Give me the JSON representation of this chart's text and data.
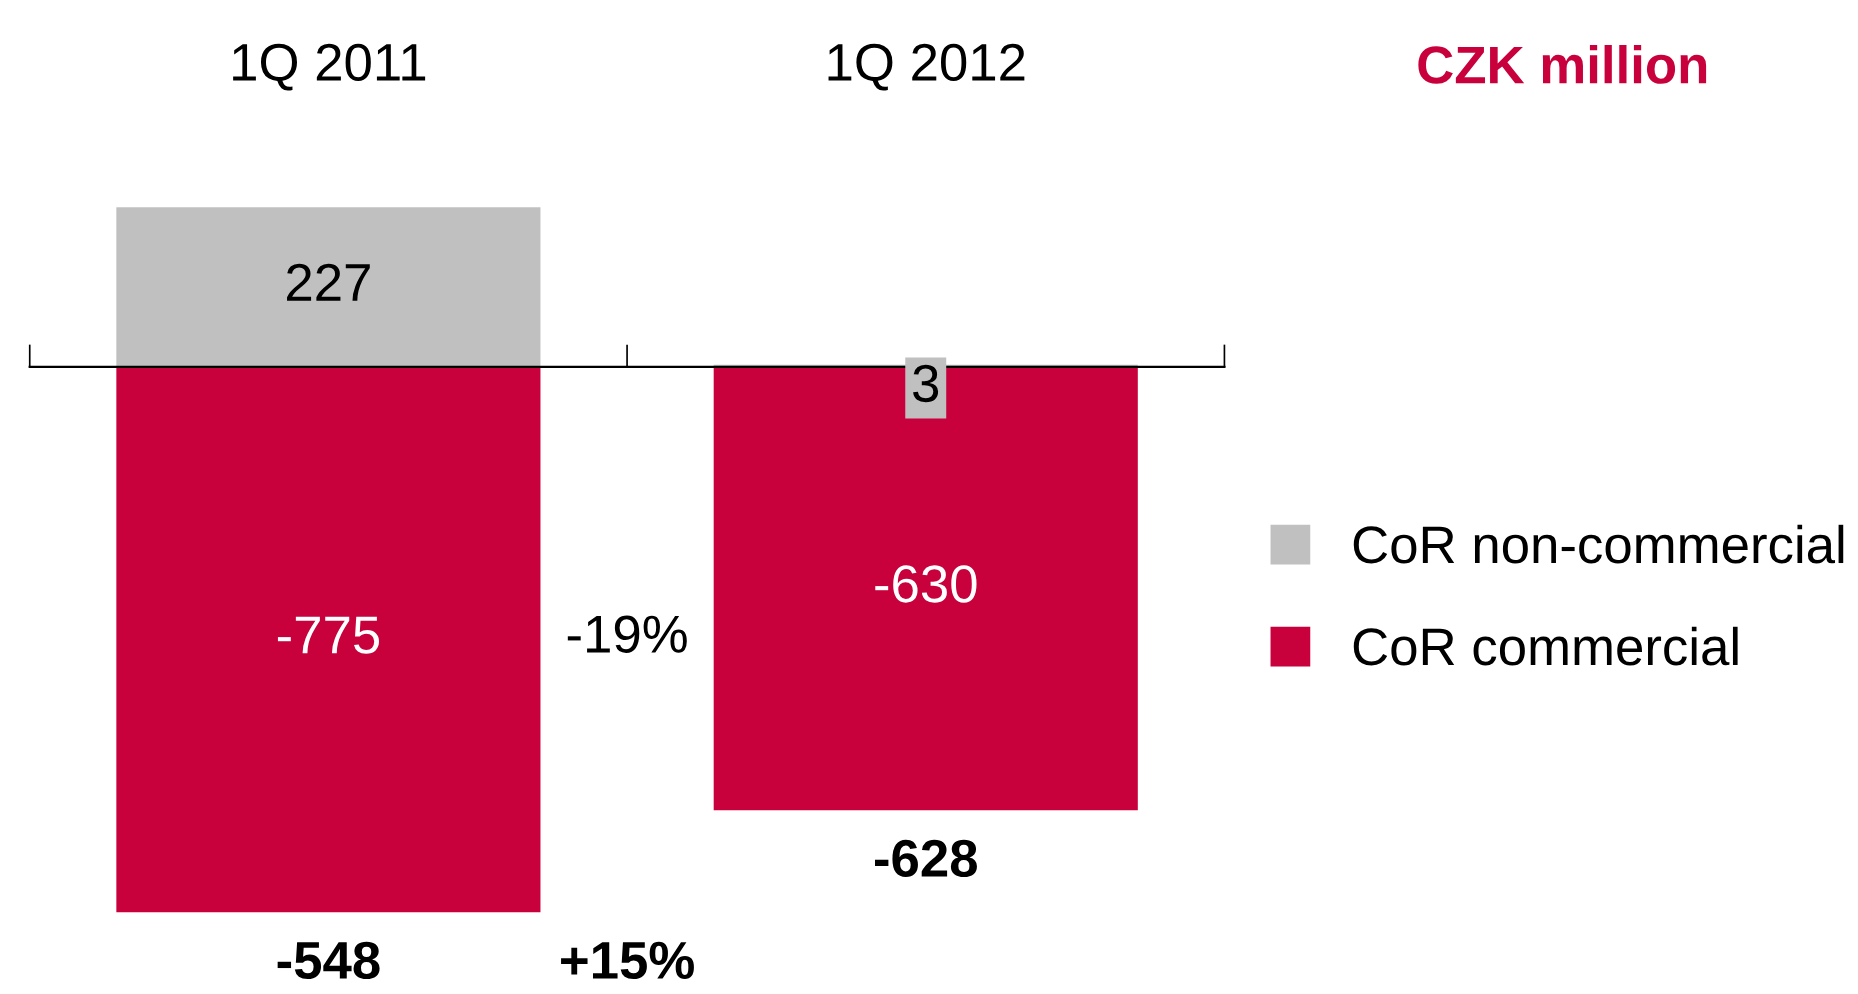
{
  "chart_data": {
    "type": "bar",
    "stacked": true,
    "title": "CZK million",
    "categories": [
      "1Q 2011",
      "1Q 2012"
    ],
    "series": [
      {
        "name": "CoR non-commercial",
        "color": "#c0c0c0",
        "values": [
          227,
          3
        ]
      },
      {
        "name": "CoR commercial",
        "color": "#c8003c",
        "values": [
          -775,
          -630
        ]
      }
    ],
    "data_labels": true,
    "totals": [
      "-548",
      "-628"
    ],
    "annotations": [
      "-19%",
      "+15%"
    ],
    "legend": "right",
    "grid": false
  }
}
